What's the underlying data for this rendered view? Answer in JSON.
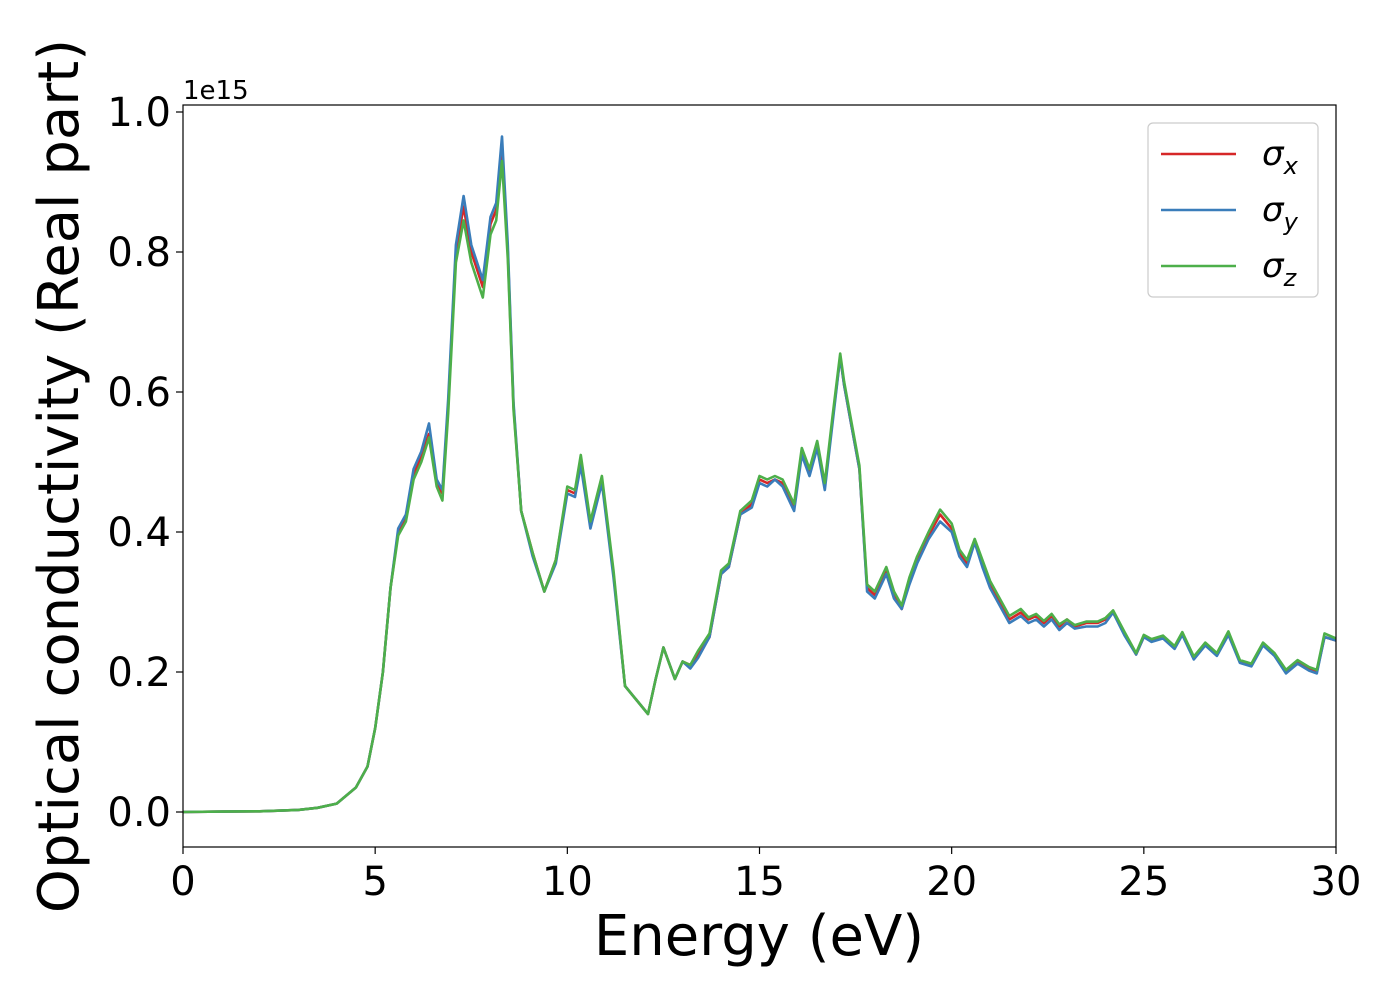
{
  "chart_data": {
    "type": "line",
    "xlabel": "Energy (eV)",
    "ylabel": "Optical conductivity (Real part)",
    "y_offset_label": "1e15",
    "xlim": [
      0,
      30
    ],
    "ylim": [
      -0.05,
      1.01
    ],
    "y_scale_factor": 1000000000000000.0,
    "xticks": [
      0,
      5,
      10,
      15,
      20,
      25,
      30
    ],
    "xtick_labels": [
      "0",
      "5",
      "10",
      "15",
      "20",
      "25",
      "30"
    ],
    "yticks": [
      0.0,
      0.2,
      0.4,
      0.6,
      0.8,
      1.0
    ],
    "ytick_labels": [
      "0.0",
      "0.2",
      "0.4",
      "0.6",
      "0.8",
      "1.0"
    ],
    "grid": false,
    "legend_position": "top-right",
    "series": [
      {
        "name": "σx",
        "legend_symbol": "σ",
        "legend_subscript": "x",
        "color": "#d62728",
        "x": [
          0,
          1,
          2,
          3,
          3.5,
          4,
          4.5,
          4.8,
          5,
          5.2,
          5.4,
          5.6,
          5.8,
          6,
          6.2,
          6.4,
          6.6,
          6.75,
          6.9,
          7.1,
          7.3,
          7.5,
          7.8,
          8.0,
          8.15,
          8.3,
          8.45,
          8.6,
          8.8,
          9.1,
          9.4,
          9.7,
          10.0,
          10.2,
          10.35,
          10.6,
          10.9,
          11.2,
          11.5,
          11.8,
          12.1,
          12.3,
          12.5,
          12.8,
          13.0,
          13.2,
          13.4,
          13.7,
          14.0,
          14.2,
          14.5,
          14.8,
          15.0,
          15.2,
          15.4,
          15.6,
          15.9,
          16.1,
          16.3,
          16.5,
          16.7,
          16.9,
          17.1,
          17.2,
          17.4,
          17.6,
          17.8,
          18.0,
          18.3,
          18.5,
          18.7,
          18.9,
          19.1,
          19.4,
          19.7,
          20.0,
          20.2,
          20.4,
          20.6,
          20.8,
          21.0,
          21.2,
          21.5,
          21.8,
          22.0,
          22.2,
          22.4,
          22.6,
          22.8,
          23.0,
          23.2,
          23.5,
          23.8,
          24.0,
          24.2,
          24.5,
          24.8,
          25.0,
          25.2,
          25.5,
          25.8,
          26.0,
          26.3,
          26.6,
          26.9,
          27.2,
          27.5,
          27.8,
          28.1,
          28.4,
          28.7,
          29.0,
          29.3,
          29.5,
          29.7,
          30.0
        ],
        "y": [
          0.0,
          0.0005,
          0.001,
          0.003,
          0.006,
          0.012,
          0.035,
          0.065,
          0.12,
          0.2,
          0.32,
          0.4,
          0.42,
          0.48,
          0.51,
          0.54,
          0.47,
          0.455,
          0.58,
          0.8,
          0.865,
          0.8,
          0.75,
          0.84,
          0.86,
          0.95,
          0.8,
          0.58,
          0.43,
          0.37,
          0.315,
          0.36,
          0.46,
          0.455,
          0.5,
          0.41,
          0.475,
          0.34,
          0.18,
          0.16,
          0.14,
          0.19,
          0.235,
          0.19,
          0.215,
          0.21,
          0.225,
          0.25,
          0.34,
          0.35,
          0.425,
          0.44,
          0.475,
          0.47,
          0.475,
          0.47,
          0.435,
          0.515,
          0.485,
          0.525,
          0.465,
          0.56,
          0.65,
          0.61,
          0.55,
          0.49,
          0.32,
          0.31,
          0.345,
          0.31,
          0.29,
          0.33,
          0.36,
          0.395,
          0.425,
          0.405,
          0.37,
          0.355,
          0.385,
          0.355,
          0.325,
          0.305,
          0.275,
          0.285,
          0.275,
          0.28,
          0.27,
          0.28,
          0.265,
          0.275,
          0.265,
          0.27,
          0.27,
          0.275,
          0.285,
          0.255,
          0.225,
          0.25,
          0.245,
          0.25,
          0.235,
          0.255,
          0.22,
          0.24,
          0.225,
          0.255,
          0.215,
          0.21,
          0.24,
          0.225,
          0.2,
          0.215,
          0.205,
          0.2,
          0.25,
          0.245
        ]
      },
      {
        "name": "σy",
        "legend_symbol": "σ",
        "legend_subscript": "y",
        "color": "#3a7dba",
        "x": [
          0,
          1,
          2,
          3,
          3.5,
          4,
          4.5,
          4.8,
          5,
          5.2,
          5.4,
          5.6,
          5.8,
          6,
          6.2,
          6.4,
          6.6,
          6.75,
          6.9,
          7.1,
          7.3,
          7.5,
          7.8,
          8.0,
          8.15,
          8.3,
          8.45,
          8.6,
          8.8,
          9.1,
          9.4,
          9.7,
          10.0,
          10.2,
          10.35,
          10.6,
          10.9,
          11.2,
          11.5,
          11.8,
          12.1,
          12.3,
          12.5,
          12.8,
          13.0,
          13.2,
          13.4,
          13.7,
          14.0,
          14.2,
          14.5,
          14.8,
          15.0,
          15.2,
          15.4,
          15.6,
          15.9,
          16.1,
          16.3,
          16.5,
          16.7,
          16.9,
          17.1,
          17.2,
          17.4,
          17.6,
          17.8,
          18.0,
          18.3,
          18.5,
          18.7,
          18.9,
          19.1,
          19.4,
          19.7,
          20.0,
          20.2,
          20.4,
          20.6,
          20.8,
          21.0,
          21.2,
          21.5,
          21.8,
          22.0,
          22.2,
          22.4,
          22.6,
          22.8,
          23.0,
          23.2,
          23.5,
          23.8,
          24.0,
          24.2,
          24.5,
          24.8,
          25.0,
          25.2,
          25.5,
          25.8,
          26.0,
          26.3,
          26.6,
          26.9,
          27.2,
          27.5,
          27.8,
          28.1,
          28.4,
          28.7,
          29.0,
          29.3,
          29.5,
          29.7,
          30.0
        ],
        "y": [
          0.0,
          0.0005,
          0.001,
          0.003,
          0.006,
          0.012,
          0.035,
          0.065,
          0.12,
          0.2,
          0.32,
          0.405,
          0.425,
          0.49,
          0.515,
          0.555,
          0.475,
          0.46,
          0.59,
          0.81,
          0.88,
          0.81,
          0.76,
          0.85,
          0.87,
          0.965,
          0.81,
          0.585,
          0.43,
          0.365,
          0.315,
          0.355,
          0.455,
          0.45,
          0.495,
          0.405,
          0.47,
          0.335,
          0.18,
          0.16,
          0.14,
          0.19,
          0.235,
          0.19,
          0.215,
          0.205,
          0.22,
          0.25,
          0.34,
          0.35,
          0.425,
          0.435,
          0.47,
          0.465,
          0.475,
          0.465,
          0.43,
          0.51,
          0.48,
          0.52,
          0.46,
          0.555,
          0.65,
          0.61,
          0.55,
          0.49,
          0.315,
          0.305,
          0.34,
          0.305,
          0.29,
          0.325,
          0.355,
          0.39,
          0.415,
          0.4,
          0.365,
          0.35,
          0.385,
          0.35,
          0.32,
          0.3,
          0.27,
          0.28,
          0.27,
          0.275,
          0.265,
          0.275,
          0.26,
          0.27,
          0.262,
          0.265,
          0.265,
          0.27,
          0.285,
          0.252,
          0.225,
          0.25,
          0.243,
          0.248,
          0.233,
          0.253,
          0.218,
          0.238,
          0.223,
          0.253,
          0.213,
          0.208,
          0.238,
          0.223,
          0.198,
          0.212,
          0.202,
          0.198,
          0.25,
          0.245
        ]
      },
      {
        "name": "σz",
        "legend_symbol": "σ",
        "legend_subscript": "z",
        "color": "#4daf4a",
        "x": [
          0,
          1,
          2,
          3,
          3.5,
          4,
          4.5,
          4.8,
          5,
          5.2,
          5.4,
          5.6,
          5.8,
          6,
          6.2,
          6.4,
          6.6,
          6.75,
          6.9,
          7.1,
          7.3,
          7.5,
          7.8,
          8.0,
          8.15,
          8.3,
          8.45,
          8.6,
          8.8,
          9.1,
          9.4,
          9.7,
          10.0,
          10.2,
          10.35,
          10.6,
          10.9,
          11.2,
          11.5,
          11.8,
          12.1,
          12.3,
          12.5,
          12.8,
          13.0,
          13.2,
          13.4,
          13.7,
          14.0,
          14.2,
          14.5,
          14.8,
          15.0,
          15.2,
          15.4,
          15.6,
          15.9,
          16.1,
          16.3,
          16.5,
          16.7,
          16.9,
          17.1,
          17.2,
          17.4,
          17.6,
          17.8,
          18.0,
          18.3,
          18.5,
          18.7,
          18.9,
          19.1,
          19.4,
          19.7,
          20.0,
          20.2,
          20.4,
          20.6,
          20.8,
          21.0,
          21.2,
          21.5,
          21.8,
          22.0,
          22.2,
          22.4,
          22.6,
          22.8,
          23.0,
          23.2,
          23.5,
          23.8,
          24.0,
          24.2,
          24.5,
          24.8,
          25.0,
          25.2,
          25.5,
          25.8,
          26.0,
          26.3,
          26.6,
          26.9,
          27.2,
          27.5,
          27.8,
          28.1,
          28.4,
          28.7,
          29.0,
          29.3,
          29.5,
          29.7,
          30.0
        ],
        "y": [
          0.0,
          0.0005,
          0.001,
          0.003,
          0.006,
          0.012,
          0.035,
          0.065,
          0.12,
          0.2,
          0.32,
          0.395,
          0.415,
          0.475,
          0.5,
          0.535,
          0.465,
          0.445,
          0.57,
          0.785,
          0.845,
          0.785,
          0.735,
          0.825,
          0.845,
          0.93,
          0.79,
          0.575,
          0.43,
          0.37,
          0.315,
          0.36,
          0.465,
          0.46,
          0.51,
          0.415,
          0.48,
          0.345,
          0.18,
          0.16,
          0.14,
          0.19,
          0.235,
          0.19,
          0.215,
          0.21,
          0.23,
          0.255,
          0.345,
          0.355,
          0.43,
          0.445,
          0.48,
          0.475,
          0.48,
          0.475,
          0.44,
          0.52,
          0.49,
          0.53,
          0.47,
          0.565,
          0.655,
          0.615,
          0.555,
          0.495,
          0.325,
          0.315,
          0.35,
          0.315,
          0.295,
          0.335,
          0.365,
          0.4,
          0.432,
          0.412,
          0.375,
          0.36,
          0.39,
          0.36,
          0.33,
          0.31,
          0.28,
          0.29,
          0.278,
          0.283,
          0.273,
          0.283,
          0.268,
          0.275,
          0.267,
          0.272,
          0.272,
          0.277,
          0.288,
          0.257,
          0.227,
          0.253,
          0.247,
          0.252,
          0.237,
          0.257,
          0.222,
          0.242,
          0.227,
          0.258,
          0.217,
          0.212,
          0.242,
          0.227,
          0.203,
          0.217,
          0.207,
          0.203,
          0.255,
          0.248
        ]
      }
    ]
  }
}
